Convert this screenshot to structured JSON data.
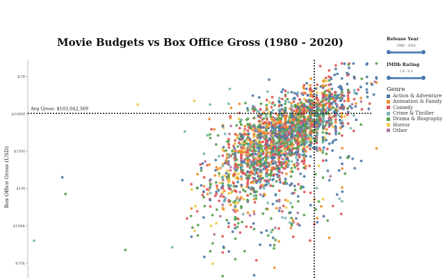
{
  "chart_data": {
    "type": "scatter",
    "title": "Movie Budgets vs Box Office Gross (1980 - 2020)",
    "ylabel": "Box Office Gross (USD)",
    "y_scale": "log",
    "y_ticks": [
      {
        "value": 1000000000,
        "label": "$1B"
      },
      {
        "value": 100000000,
        "label": "$100M"
      },
      {
        "value": 10000000,
        "label": "$10M"
      },
      {
        "value": 1000000,
        "label": "$1M"
      },
      {
        "value": 100000,
        "label": "$100k"
      },
      {
        "value": 10000,
        "label": "$10k"
      }
    ],
    "avg_gross_label": "Avg Gross: $103,042,369",
    "avg_gross": 103042369,
    "avg_budget_log10": 7.56,
    "x_domain_log10": [
      3.0,
      8.6
    ],
    "y_domain_log10": [
      3.6,
      9.45
    ],
    "grid": false,
    "legend_placement": "right",
    "genres": [
      {
        "name": "Action & Adventure",
        "color": "#4e79a7"
      },
      {
        "name": "Animation & Family",
        "color": "#f28e2b"
      },
      {
        "name": "Comedy",
        "color": "#e15759"
      },
      {
        "name": "Crime & Thriller",
        "color": "#76b7b2"
      },
      {
        "name": "Drama & Biography",
        "color": "#59a14f"
      },
      {
        "name": "Horror",
        "color": "#edc948"
      },
      {
        "name": "Other",
        "color": "#b07aa1"
      }
    ],
    "outlier_points": [
      {
        "x_log10": 4.75,
        "y_log10": 8.25,
        "genre": 5
      },
      {
        "x_log10": 5.65,
        "y_log10": 8.35,
        "genre": 5
      },
      {
        "x_log10": 3.55,
        "y_log10": 6.3,
        "genre": 0
      },
      {
        "x_log10": 3.1,
        "y_log10": 4.6,
        "genre": 3
      },
      {
        "x_log10": 3.6,
        "y_log10": 5.85,
        "genre": 4
      },
      {
        "x_log10": 4.55,
        "y_log10": 4.35,
        "genre": 4
      },
      {
        "x_log10": 6.1,
        "y_log10": 3.65,
        "genre": 4
      },
      {
        "x_log10": 8.4,
        "y_log10": 9.35,
        "genre": 0
      },
      {
        "x_log10": 8.05,
        "y_log10": 6.4,
        "genre": 4
      },
      {
        "x_log10": 7.75,
        "y_log10": 6.75,
        "genre": 0
      }
    ]
  },
  "panel": {
    "release_year_title": "Release Year",
    "release_year_range": "1980 - 2020",
    "imdb_title": "IMDb Rating",
    "imdb_range": "1.9 - 9.3",
    "legend_title": "Genre"
  }
}
